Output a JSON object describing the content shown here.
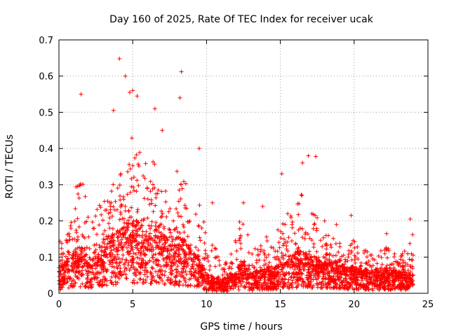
{
  "chart_data": {
    "type": "scatter",
    "title": "Day 160 of 2025, Rate Of TEC Index for receiver ucak",
    "xlabel": "GPS time / hours",
    "ylabel": "ROTI / TECUs",
    "xlim": [
      0,
      25
    ],
    "ylim": [
      0,
      0.7
    ],
    "xticks": [
      0,
      5,
      10,
      15,
      20,
      25
    ],
    "xtick_labels": [
      "0",
      "5",
      "10",
      "15",
      "20",
      "25"
    ],
    "yticks": [
      0,
      0.1,
      0.2,
      0.3,
      0.4,
      0.5,
      0.6,
      0.7
    ],
    "ytick_labels": [
      "0",
      "0.1",
      "0.2",
      "0.3",
      "0.4",
      "0.5",
      "0.6",
      "0.7"
    ],
    "grid": true,
    "marker": "plus",
    "color": "#ff0000",
    "x_range_of_data": [
      0,
      24
    ],
    "notable_points": [
      {
        "x": 1.5,
        "y": 0.55
      },
      {
        "x": 3.7,
        "y": 0.505
      },
      {
        "x": 4.1,
        "y": 0.648
      },
      {
        "x": 4.5,
        "y": 0.6
      },
      {
        "x": 4.8,
        "y": 0.555
      },
      {
        "x": 5.0,
        "y": 0.56
      },
      {
        "x": 5.3,
        "y": 0.545
      },
      {
        "x": 6.5,
        "y": 0.51
      },
      {
        "x": 7.0,
        "y": 0.45
      },
      {
        "x": 8.3,
        "y": 0.612
      },
      {
        "x": 8.2,
        "y": 0.54
      },
      {
        "x": 9.5,
        "y": 0.4
      },
      {
        "x": 10.4,
        "y": 0.25
      },
      {
        "x": 12.5,
        "y": 0.25
      },
      {
        "x": 13.8,
        "y": 0.24
      },
      {
        "x": 15.1,
        "y": 0.33
      },
      {
        "x": 15.5,
        "y": 0.22
      },
      {
        "x": 16.5,
        "y": 0.36
      },
      {
        "x": 16.9,
        "y": 0.38
      },
      {
        "x": 17.4,
        "y": 0.378
      },
      {
        "x": 18.0,
        "y": 0.2
      },
      {
        "x": 18.8,
        "y": 0.19
      },
      {
        "x": 19.8,
        "y": 0.215
      },
      {
        "x": 22.2,
        "y": 0.165
      },
      {
        "x": 23.8,
        "y": 0.205
      }
    ],
    "envelope": {
      "hours": [
        0,
        0.5,
        1,
        1.5,
        2,
        2.5,
        3,
        3.5,
        4,
        4.5,
        5,
        5.5,
        6,
        6.5,
        7,
        7.5,
        8,
        8.5,
        9,
        9.5,
        10,
        10.5,
        11,
        11.5,
        12,
        12.5,
        13,
        13.5,
        14,
        14.5,
        15,
        15.5,
        16,
        16.5,
        17,
        17.5,
        18,
        18.5,
        19,
        19.5,
        20,
        20.5,
        21,
        21.5,
        22,
        22.5,
        23,
        23.5,
        24
      ],
      "typical_max": [
        0.15,
        0.15,
        0.28,
        0.33,
        0.22,
        0.22,
        0.3,
        0.3,
        0.36,
        0.4,
        0.45,
        0.4,
        0.35,
        0.38,
        0.33,
        0.3,
        0.35,
        0.34,
        0.25,
        0.3,
        0.18,
        0.14,
        0.08,
        0.1,
        0.18,
        0.24,
        0.14,
        0.12,
        0.2,
        0.14,
        0.2,
        0.2,
        0.25,
        0.28,
        0.22,
        0.22,
        0.17,
        0.16,
        0.17,
        0.13,
        0.15,
        0.12,
        0.12,
        0.1,
        0.13,
        0.12,
        0.1,
        0.12,
        0.18
      ],
      "typical_median": [
        0.05,
        0.06,
        0.08,
        0.09,
        0.07,
        0.08,
        0.1,
        0.11,
        0.12,
        0.13,
        0.14,
        0.13,
        0.12,
        0.12,
        0.11,
        0.1,
        0.11,
        0.1,
        0.08,
        0.07,
        0.04,
        0.03,
        0.025,
        0.03,
        0.04,
        0.06,
        0.04,
        0.04,
        0.05,
        0.045,
        0.06,
        0.07,
        0.08,
        0.08,
        0.07,
        0.07,
        0.06,
        0.06,
        0.06,
        0.05,
        0.05,
        0.045,
        0.045,
        0.04,
        0.045,
        0.045,
        0.04,
        0.04,
        0.05
      ]
    }
  }
}
